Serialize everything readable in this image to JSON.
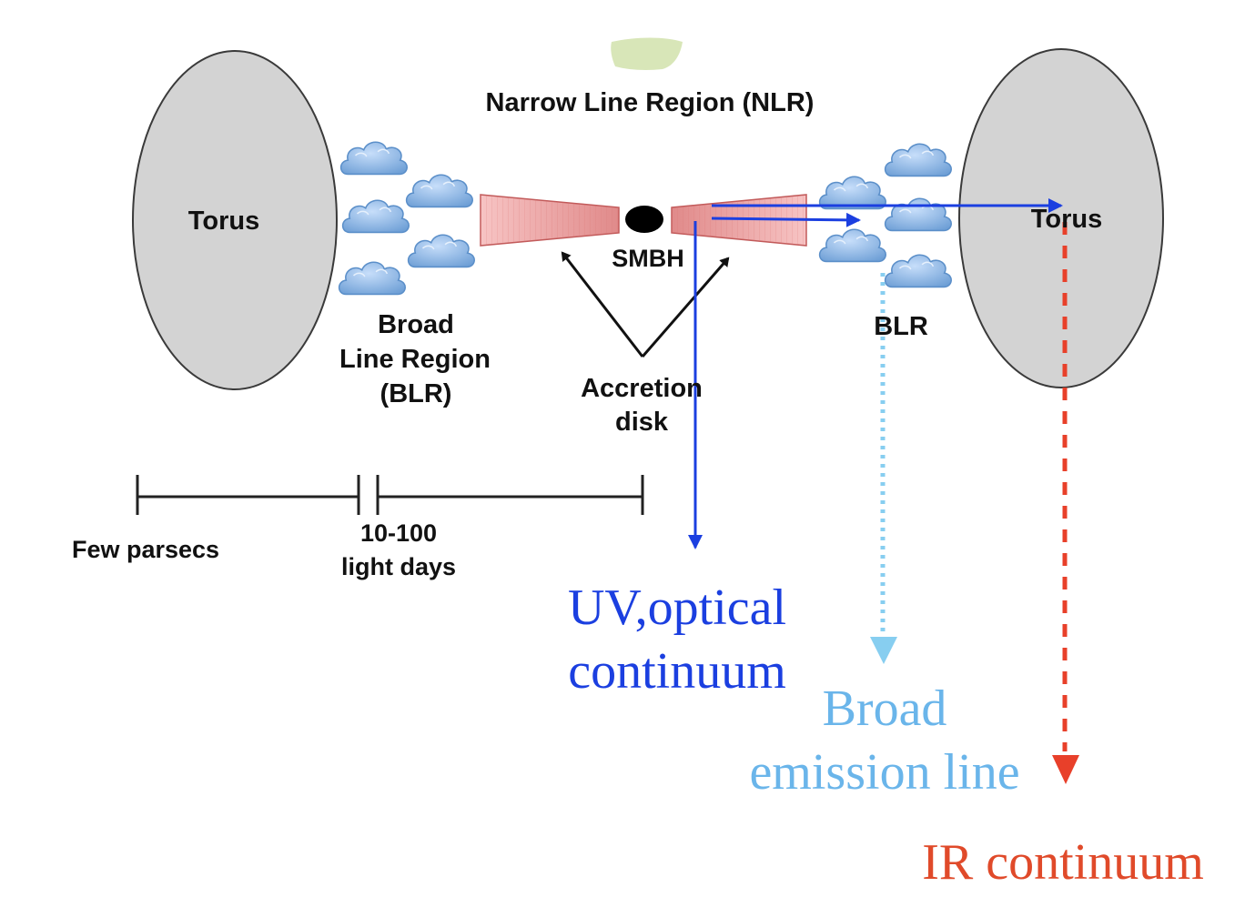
{
  "labels": {
    "nlr": "Narrow Line Region (NLR)",
    "torus_left": "Torus",
    "torus_right": "Torus",
    "smbh": "SMBH",
    "blr_left_line1": "Broad",
    "blr_left_line2": "Line Region",
    "blr_left_line3": "(BLR)",
    "blr_right": "BLR",
    "accretion_line1": "Accretion",
    "accretion_line2": "disk",
    "scale_few_parsecs": "Few parsecs",
    "scale_light_line1": "10-100",
    "scale_light_line2": "light days",
    "uv_line1": "UV,optical",
    "uv_line2": "continuum",
    "broad_line1": "Broad",
    "broad_line2": "emission line",
    "ir_continuum": "IR continuum"
  },
  "colors": {
    "torus_fill": "#d3d3d3",
    "cloud_fill": "#8fb8e3",
    "disk_fill": "#f2b3b3",
    "nlr_fill": "#d8e6b8",
    "uv_arrow": "#1b3fe0",
    "broad_arrow": "#87cef0",
    "ir_arrow": "#e8402a",
    "uv_text": "#1b3fe0",
    "broad_text": "#6ab5ea",
    "ir_text": "#e04a2a"
  },
  "icons": {
    "cloud": "cloud-icon",
    "black_hole": "black-hole-icon"
  }
}
